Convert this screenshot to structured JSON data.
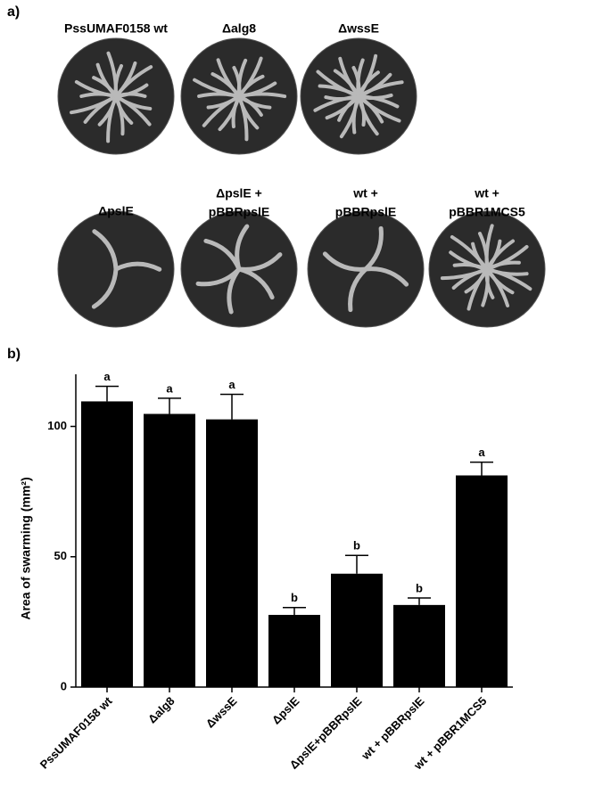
{
  "panel_a": {
    "label": "a)",
    "plates": [
      {
        "lines": [
          "PssUMAF0158 wt"
        ]
      },
      {
        "lines": [
          "Δalg8"
        ]
      },
      {
        "lines": [
          "ΔwssE"
        ]
      },
      {
        "lines": [
          "ΔpslE"
        ]
      },
      {
        "lines": [
          "ΔpslE +",
          "pBBRpslE"
        ]
      },
      {
        "lines": [
          "wt +",
          "pBBRpslE"
        ]
      },
      {
        "lines": [
          "wt +",
          "pBBR1MCS5"
        ]
      }
    ]
  },
  "chart_data": {
    "type": "bar",
    "label": "b)",
    "y_label": "Area of swarming (mm²)",
    "categories": [
      "PssUMAF0158 wt",
      "Δalg8",
      "ΔwssE",
      "ΔpslE",
      "ΔpslE+pBBRpslE",
      "wt + pBBRpslE",
      "wt + pBBR1MCS5"
    ],
    "values": [
      109.6,
      104.8,
      102.7,
      27.7,
      43.5,
      31.5,
      81.2
    ],
    "errors": [
      5.8,
      6,
      9.6,
      2.8,
      7,
      2.7,
      5.1
    ],
    "annotations": [
      "a",
      "a",
      "a",
      "b",
      "b",
      "b",
      "a"
    ],
    "color": "#000000",
    "ylim": [
      0,
      120
    ],
    "yticks": [
      0,
      50,
      100
    ]
  }
}
